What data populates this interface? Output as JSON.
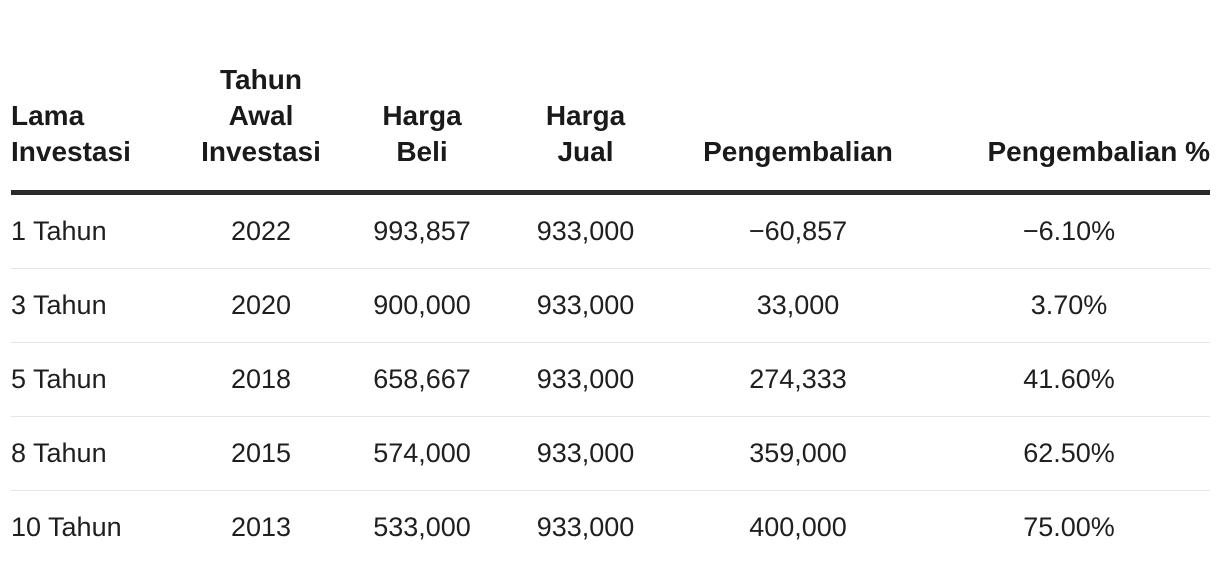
{
  "table": {
    "headers": [
      [
        "Lama",
        "Investasi"
      ],
      [
        "Tahun",
        "Awal",
        "Investasi"
      ],
      [
        "Harga",
        "Beli"
      ],
      [
        "Harga",
        "Jual"
      ],
      [
        "Pengembalian"
      ],
      [
        "Pengembalian %"
      ]
    ],
    "rows": [
      [
        "1 Tahun",
        "2022",
        "993,857",
        "933,000",
        "−60,857",
        "−6.10%"
      ],
      [
        "3 Tahun",
        "2020",
        "900,000",
        "933,000",
        "33,000",
        "3.70%"
      ],
      [
        "5 Tahun",
        "2018",
        "658,667",
        "933,000",
        "274,333",
        "41.60%"
      ],
      [
        "8 Tahun",
        "2015",
        "574,000",
        "933,000",
        "359,000",
        "62.50%"
      ],
      [
        "10 Tahun",
        "2013",
        "533,000",
        "933,000",
        "400,000",
        "75.00%"
      ]
    ]
  },
  "colors": {
    "text": "#1a1a1a",
    "header_rule": "#2a2a2a",
    "row_divider": "#e6e6e6"
  }
}
